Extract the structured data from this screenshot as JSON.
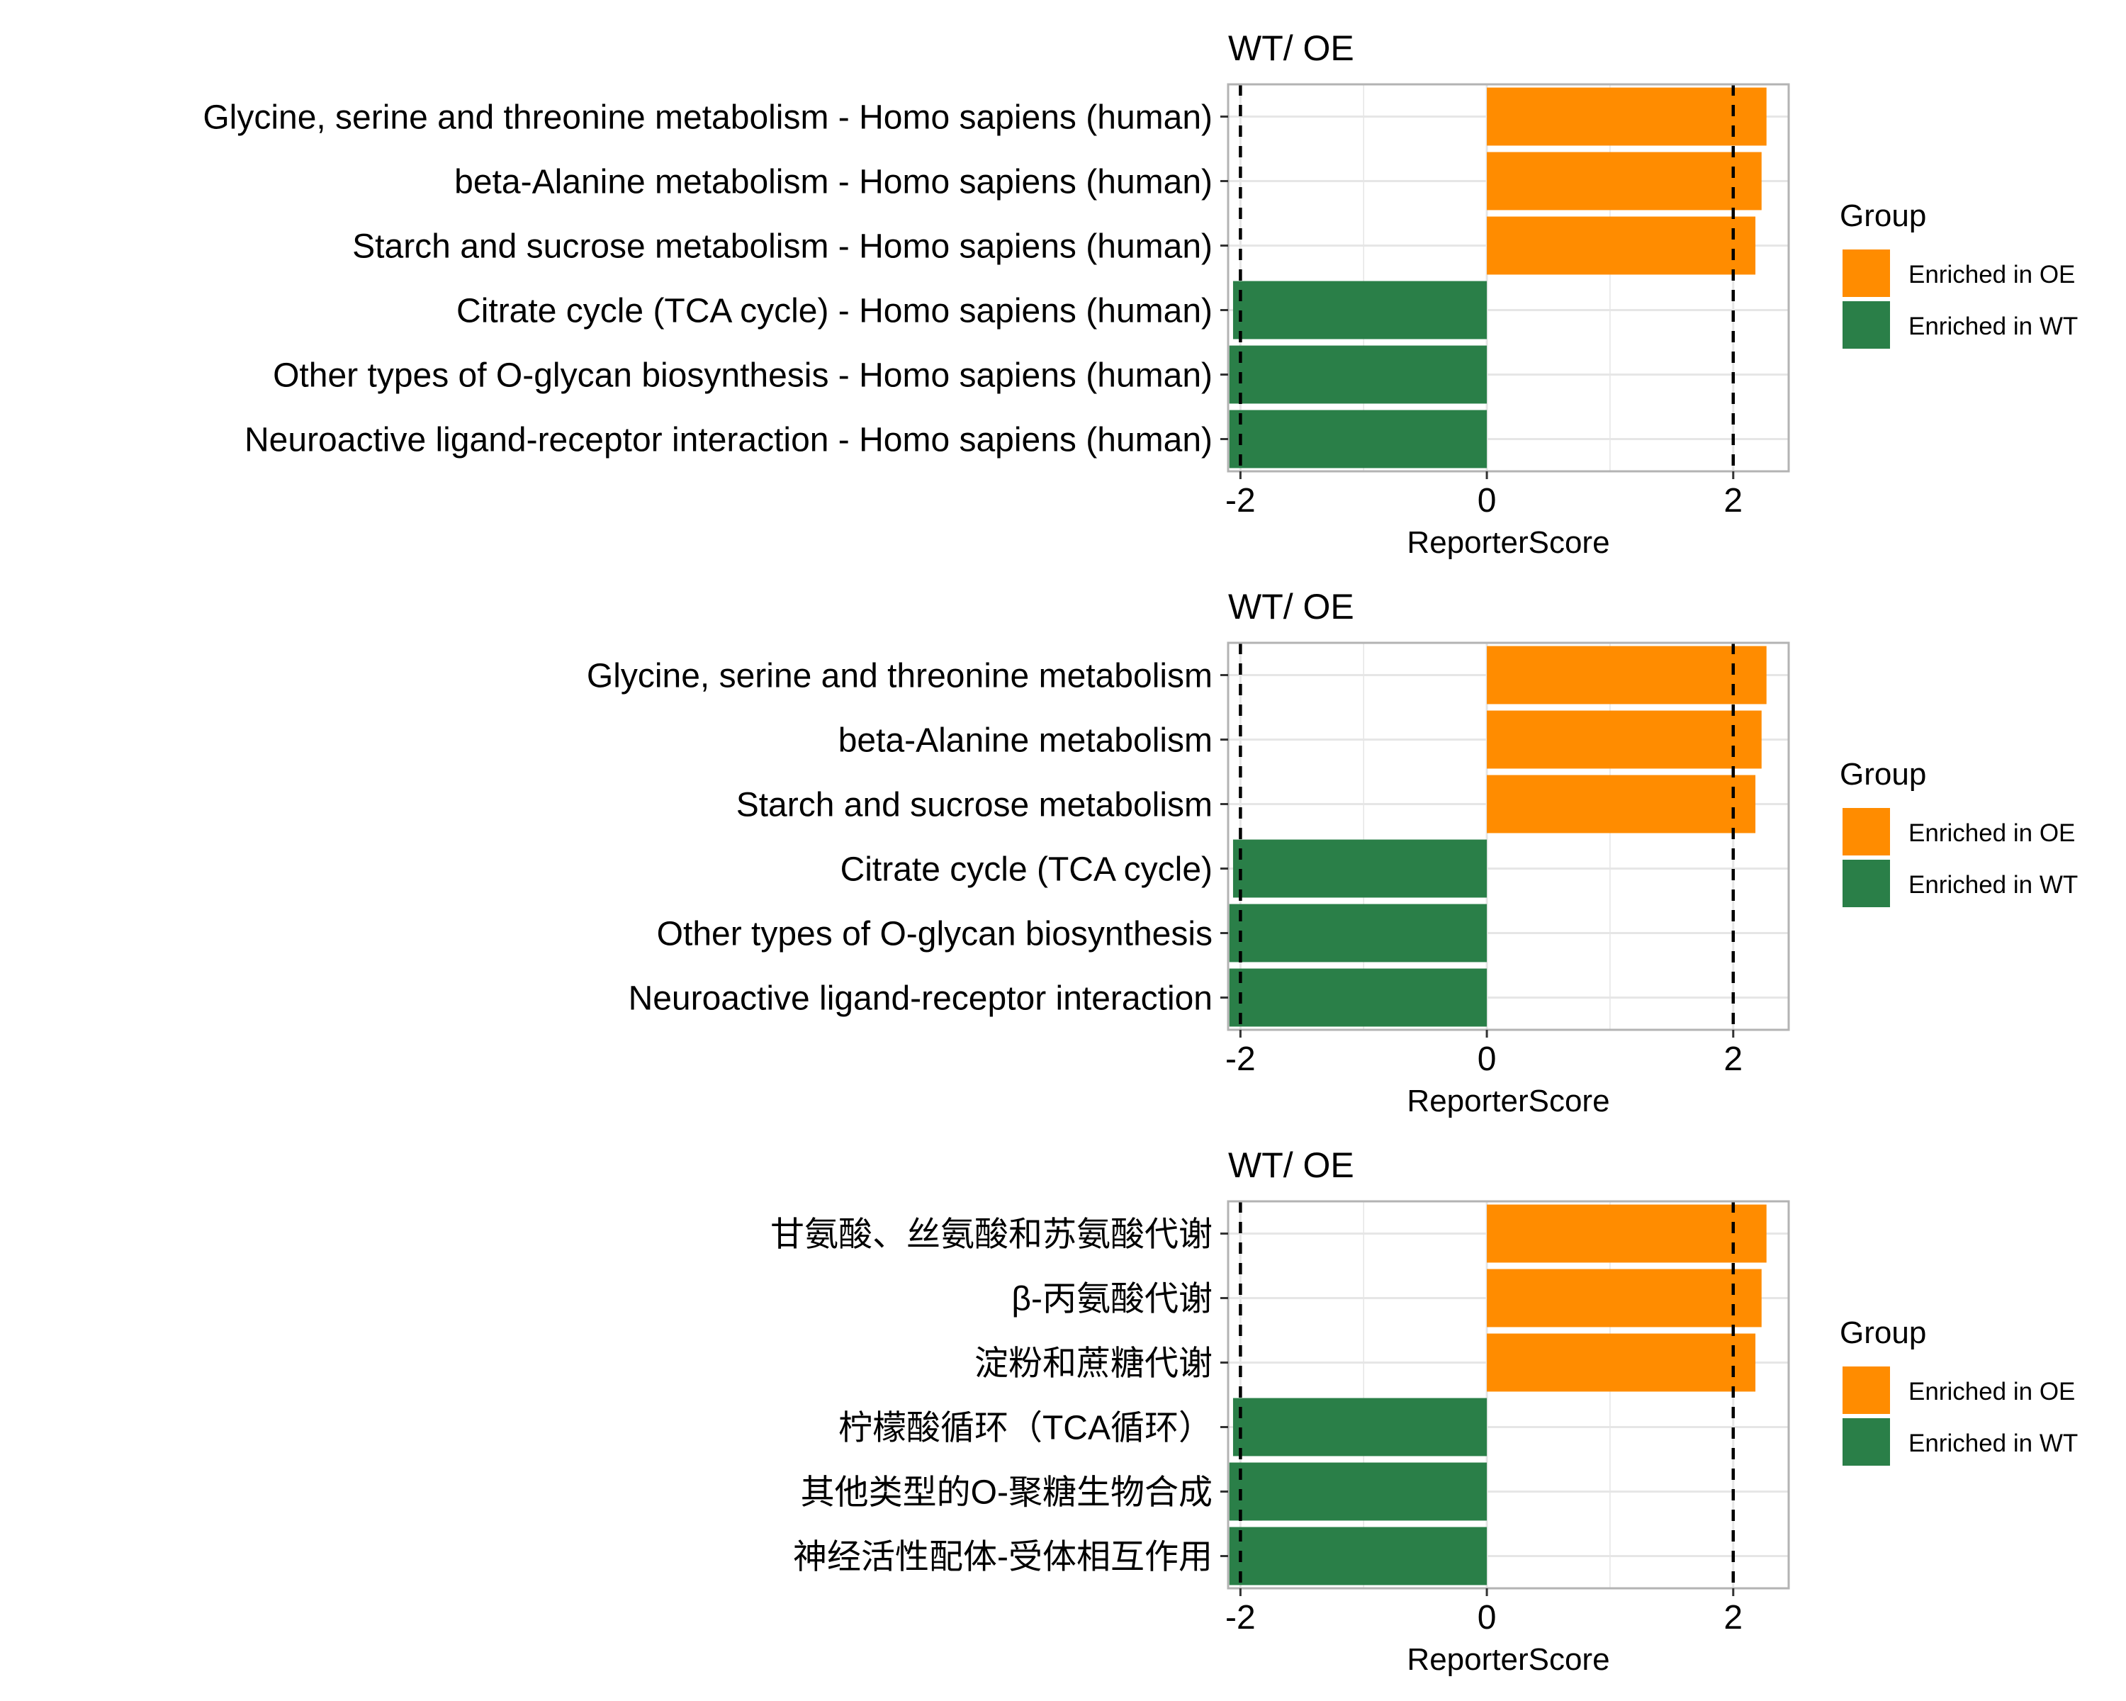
{
  "chart_data": [
    {
      "type": "bar",
      "orientation": "horizontal",
      "title": "WT/ OE",
      "xlabel": "ReporterScore",
      "ylabel": "",
      "xlim": [
        -2.1,
        2.45
      ],
      "xticks": [
        -2,
        0,
        2
      ],
      "threshold_lines": [
        -2,
        2
      ],
      "grid": true,
      "legend": {
        "title": "Group",
        "position": "right",
        "entries": [
          "Enriched in OE",
          "Enriched in WT"
        ]
      },
      "categories": [
        "Glycine, serine and threonine metabolism - Homo sapiens (human)",
        "beta-Alanine metabolism - Homo sapiens (human)",
        "Starch and sucrose metabolism - Homo sapiens (human)",
        "Citrate cycle (TCA cycle) - Homo sapiens (human)",
        "Other types of O-glycan biosynthesis - Homo sapiens (human)",
        "Neuroactive ligand-receptor interaction - Homo sapiens (human)"
      ],
      "values": [
        2.27,
        2.23,
        2.18,
        -2.06,
        -2.09,
        -2.09
      ],
      "groups": [
        "Enriched in OE",
        "Enriched in OE",
        "Enriched in OE",
        "Enriched in WT",
        "Enriched in WT",
        "Enriched in WT"
      ]
    },
    {
      "type": "bar",
      "orientation": "horizontal",
      "title": "WT/ OE",
      "xlabel": "ReporterScore",
      "ylabel": "",
      "xlim": [
        -2.1,
        2.45
      ],
      "xticks": [
        -2,
        0,
        2
      ],
      "threshold_lines": [
        -2,
        2
      ],
      "grid": true,
      "legend": {
        "title": "Group",
        "position": "right",
        "entries": [
          "Enriched in OE",
          "Enriched in WT"
        ]
      },
      "categories": [
        "Glycine, serine and threonine metabolism",
        "beta-Alanine metabolism",
        "Starch and sucrose metabolism",
        "Citrate cycle (TCA cycle)",
        "Other types of O-glycan biosynthesis",
        "Neuroactive ligand-receptor interaction"
      ],
      "values": [
        2.27,
        2.23,
        2.18,
        -2.06,
        -2.09,
        -2.09
      ],
      "groups": [
        "Enriched in OE",
        "Enriched in OE",
        "Enriched in OE",
        "Enriched in WT",
        "Enriched in WT",
        "Enriched in WT"
      ]
    },
    {
      "type": "bar",
      "orientation": "horizontal",
      "title": "WT/ OE",
      "xlabel": "ReporterScore",
      "ylabel": "",
      "xlim": [
        -2.1,
        2.45
      ],
      "xticks": [
        -2,
        0,
        2
      ],
      "threshold_lines": [
        -2,
        2
      ],
      "grid": true,
      "legend": {
        "title": "Group",
        "position": "right",
        "entries": [
          "Enriched in OE",
          "Enriched in WT"
        ]
      },
      "categories": [
        "甘氨酸、丝氨酸和苏氨酸代谢",
        "β-丙氨酸代谢",
        "淀粉和蔗糖代谢",
        "柠檬酸循环（TCA循环）",
        "其他类型的O-聚糖生物合成",
        "神经活性配体-受体相互作用"
      ],
      "values": [
        2.27,
        2.23,
        2.18,
        -2.06,
        -2.09,
        -2.09
      ],
      "groups": [
        "Enriched in OE",
        "Enriched in OE",
        "Enriched in OE",
        "Enriched in WT",
        "Enriched in WT",
        "Enriched in WT"
      ]
    }
  ],
  "colors": {
    "Enriched in OE": "#ff8c00",
    "Enriched in WT": "#2a7f48",
    "grid": "#e6e6e6",
    "panel_border": "#b3b3b3",
    "threshold": "#000000"
  }
}
